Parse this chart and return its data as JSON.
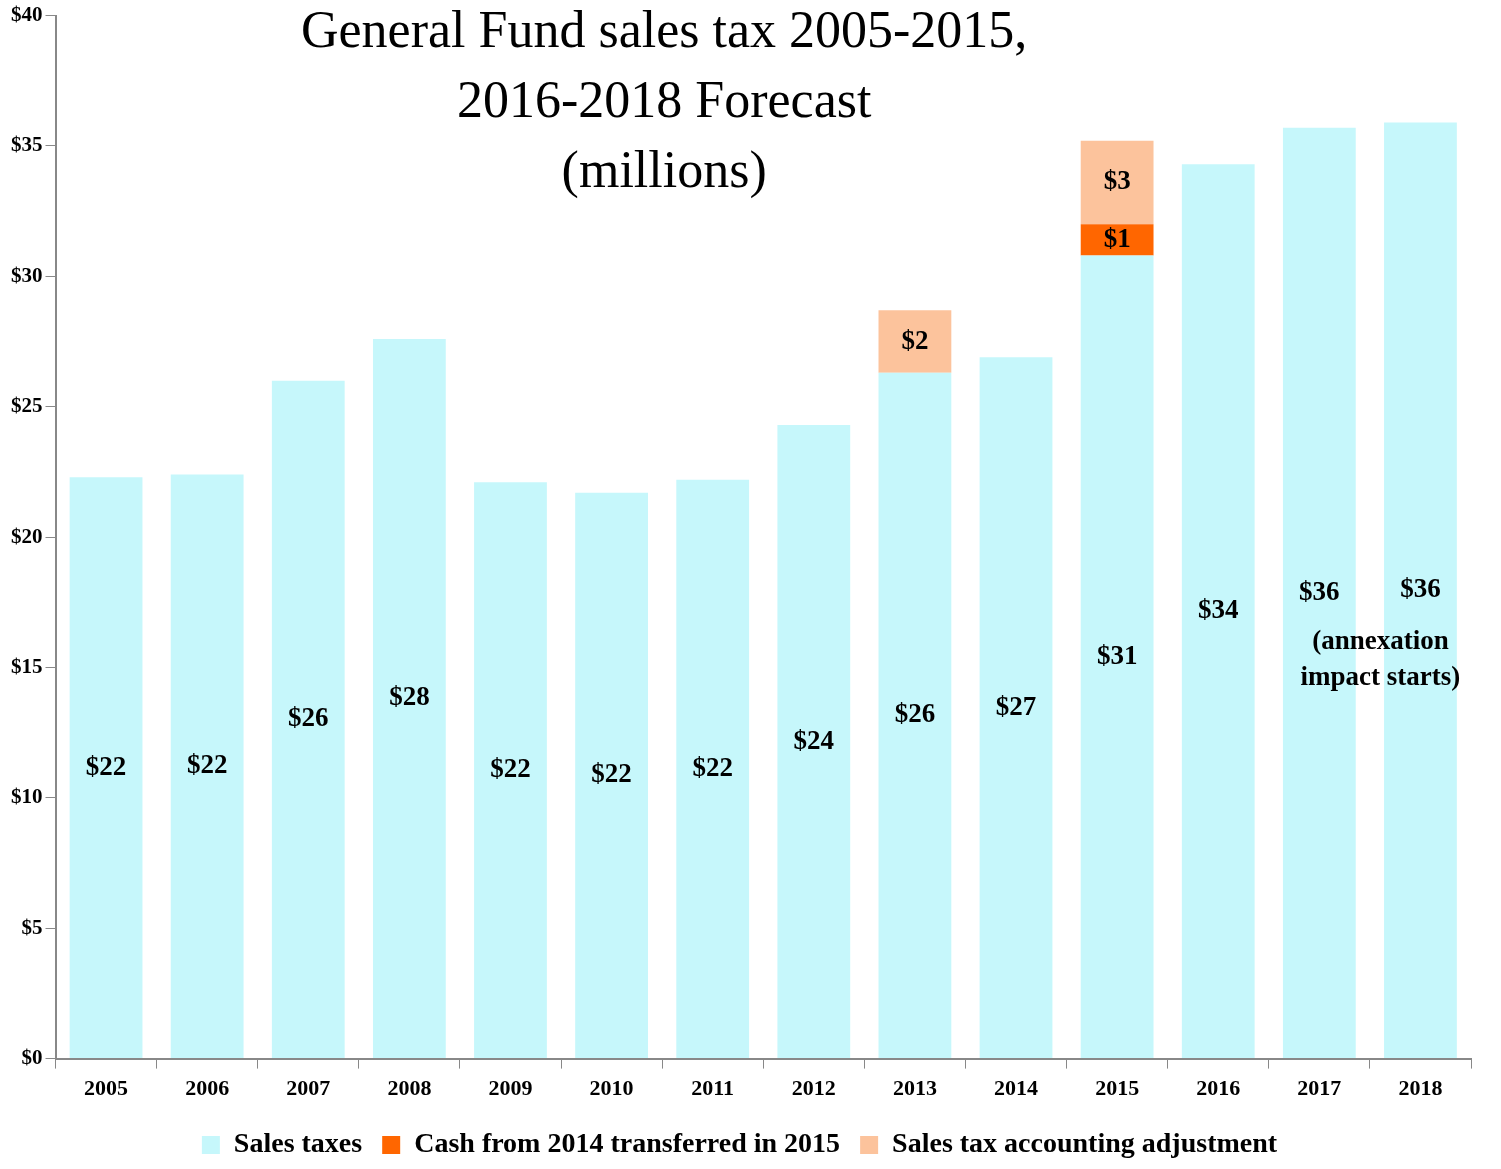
{
  "chart_data": {
    "type": "bar",
    "title": "General Fund sales tax 2005-2015, 2016-2018 Forecast",
    "subtitle": "(millions)",
    "categories": [
      "2005",
      "2006",
      "2007",
      "2008",
      "2009",
      "2010",
      "2011",
      "2012",
      "2013",
      "2014",
      "2015",
      "2016",
      "2017",
      "2018"
    ],
    "stacked": true,
    "series": [
      {
        "name": "Sales taxes",
        "color": "#c6f7fb",
        "values": [
          22.3,
          22.4,
          26.0,
          27.6,
          22.1,
          21.7,
          22.2,
          24.3,
          26.3,
          26.9,
          30.8,
          34.3,
          35.7,
          35.9
        ],
        "value_labels": [
          "$22",
          "$22",
          "$26",
          "$28",
          "$22",
          "$22",
          "$22",
          "$24",
          "$26",
          "$27",
          "$31",
          "$34",
          "$36",
          "$36"
        ]
      },
      {
        "name": "Cash from 2014 transferred in 2015",
        "color": "#ff6600",
        "values": [
          null,
          null,
          null,
          null,
          null,
          null,
          null,
          null,
          null,
          null,
          1.2,
          null,
          null,
          null
        ],
        "value_labels": [
          null,
          null,
          null,
          null,
          null,
          null,
          null,
          null,
          null,
          null,
          "$1",
          null,
          null,
          null
        ]
      },
      {
        "name": "Sales tax accounting adjustment",
        "color": "#fcc39c",
        "values": [
          null,
          null,
          null,
          null,
          null,
          null,
          null,
          null,
          2.4,
          null,
          3.2,
          null,
          null,
          null
        ],
        "value_labels": [
          null,
          null,
          null,
          null,
          null,
          null,
          null,
          null,
          "$2",
          null,
          "$3",
          null,
          null,
          null
        ]
      }
    ],
    "annotations": [
      "(annexation impact starts)"
    ],
    "ylim": [
      0,
      40
    ],
    "yticks": [
      {
        "value": 0,
        "label": "$0"
      },
      {
        "value": 5,
        "label": "$5"
      },
      {
        "value": 10,
        "label": "$10"
      },
      {
        "value": 15,
        "label": "$15"
      },
      {
        "value": 20,
        "label": "$20"
      },
      {
        "value": 25,
        "label": "$25"
      },
      {
        "value": 30,
        "label": "$30"
      },
      {
        "value": 35,
        "label": "$35"
      },
      {
        "value": 40,
        "label": "$40"
      }
    ],
    "grid": false,
    "legend": "bottom"
  }
}
